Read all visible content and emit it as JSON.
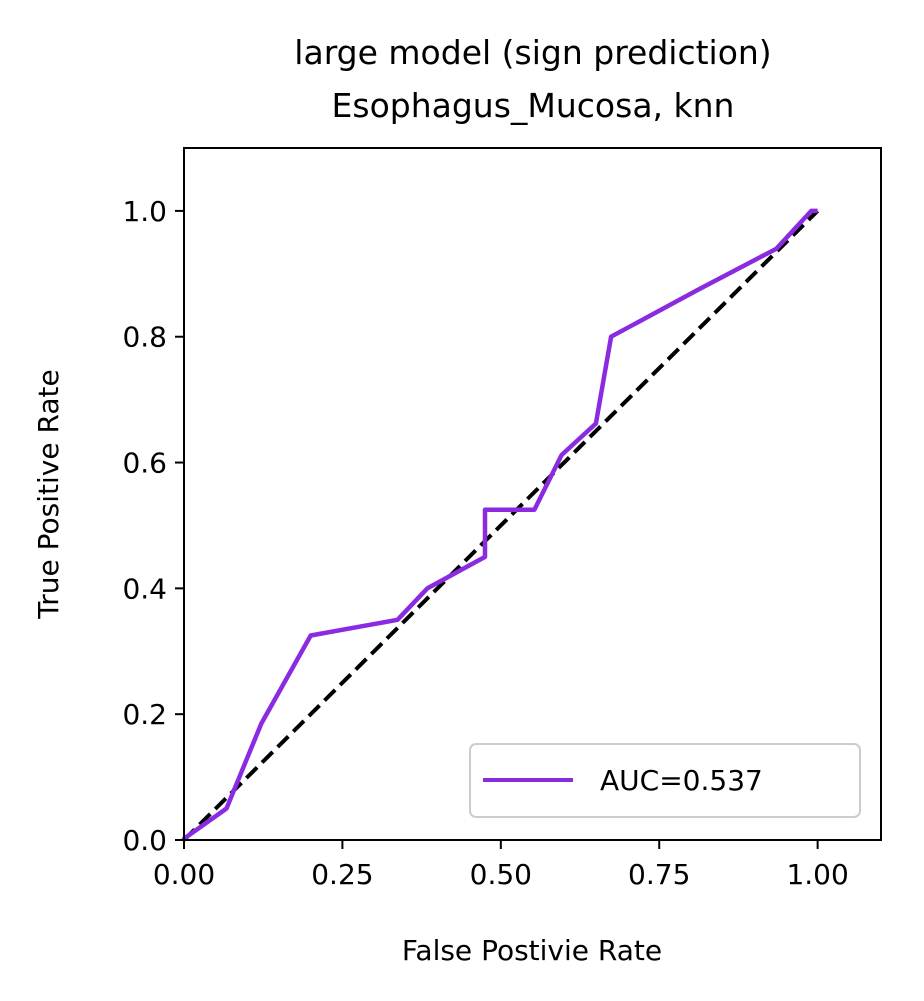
{
  "chart_data": {
    "type": "line",
    "title": "large model (sign prediction)",
    "subtitle": "Esophagus_Mucosa, knn",
    "xlabel": "False Postivie Rate",
    "ylabel": "True Positive Rate",
    "xlim": [
      0.0,
      1.1
    ],
    "ylim": [
      0.0,
      1.1
    ],
    "xticks": [
      0.0,
      0.25,
      0.5,
      0.75,
      1.0
    ],
    "xtick_labels": [
      "0.00",
      "0.25",
      "0.50",
      "0.75",
      "1.00"
    ],
    "yticks": [
      0.0,
      0.2,
      0.4,
      0.6,
      0.8,
      1.0
    ],
    "ytick_labels": [
      "0.0",
      "0.2",
      "0.4",
      "0.6",
      "0.8",
      "1.0"
    ],
    "grid": false,
    "legend_position": "lower-right",
    "series": [
      {
        "name": "AUC=0.537",
        "color": "#8a2be2",
        "style": "solid",
        "x": [
          0.0,
          0.0,
          0.067,
          0.122,
          0.2,
          0.337,
          0.384,
          0.475,
          0.475,
          0.553,
          0.596,
          0.65,
          0.674,
          0.812,
          0.935,
          0.99,
          1.0
        ],
        "y": [
          0.0,
          0.002,
          0.05,
          0.185,
          0.325,
          0.35,
          0.4,
          0.45,
          0.525,
          0.525,
          0.612,
          0.662,
          0.8,
          0.875,
          0.94,
          1.0,
          1.0
        ]
      },
      {
        "name": "",
        "color": "#000000",
        "style": "dashed",
        "x": [
          0.0,
          1.0
        ],
        "y": [
          0.0,
          1.0
        ]
      }
    ]
  }
}
